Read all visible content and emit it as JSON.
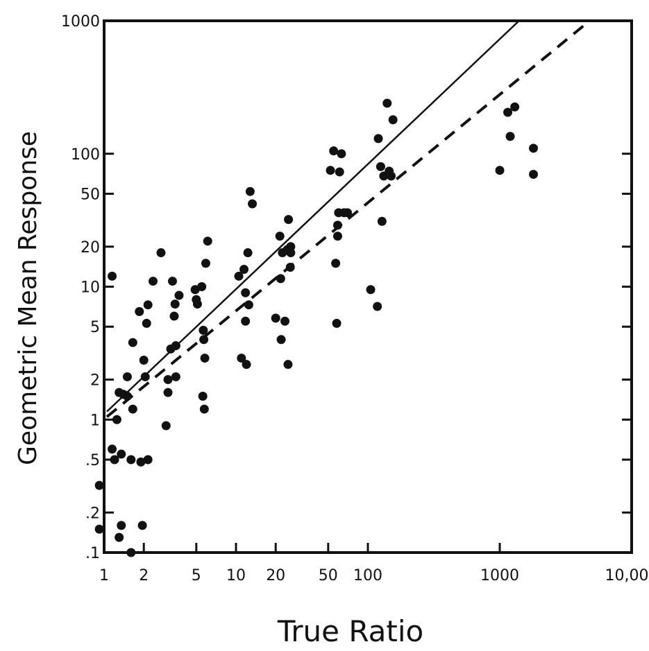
{
  "chart_data": {
    "type": "scatter",
    "xlabel": "True Ratio",
    "ylabel": "Geometric Mean Response",
    "x_scale": "log",
    "y_scale": "log",
    "xlim": [
      1,
      10000
    ],
    "ylim": [
      0.1,
      1000
    ],
    "x_ticklabels": [
      {
        "value": 1,
        "label": "1"
      },
      {
        "value": 2,
        "label": "2"
      },
      {
        "value": 5,
        "label": "5"
      },
      {
        "value": 10,
        "label": "10"
      },
      {
        "value": 20,
        "label": "20"
      },
      {
        "value": 50,
        "label": "50"
      },
      {
        "value": 100,
        "label": "100"
      },
      {
        "value": 1000,
        "label": "1000"
      },
      {
        "value": 10000,
        "label": "10,000"
      }
    ],
    "y_ticklabels": [
      {
        "value": 0.1,
        "label": ".1"
      },
      {
        "value": 0.2,
        "label": ".2"
      },
      {
        "value": 0.5,
        "label": ".5"
      },
      {
        "value": 1,
        "label": "1"
      },
      {
        "value": 2,
        "label": "2"
      },
      {
        "value": 5,
        "label": "5"
      },
      {
        "value": 10,
        "label": "10"
      },
      {
        "value": 20,
        "label": "20"
      },
      {
        "value": 50,
        "label": "50"
      },
      {
        "value": 100,
        "label": "100"
      },
      {
        "value": 1000,
        "label": "1000"
      }
    ],
    "grid": false,
    "series": [
      {
        "style": "points",
        "points": [
          [
            1.15,
            12
          ],
          [
            1.15,
            0.6
          ],
          [
            1.2,
            0.5
          ],
          [
            1.25,
            1
          ],
          [
            1.3,
            1.6
          ],
          [
            1.35,
            0.55
          ],
          [
            1.4,
            1.55
          ],
          [
            1.5,
            2.1
          ],
          [
            1.5,
            1.5
          ],
          [
            1.6,
            0.5
          ],
          [
            1.65,
            1.2
          ],
          [
            1.65,
            3.8
          ],
          [
            1.85,
            6.5
          ],
          [
            1.9,
            0.48
          ],
          [
            2,
            2.8
          ],
          [
            2.05,
            2.1
          ],
          [
            2.1,
            5.3
          ],
          [
            2.15,
            7.3
          ],
          [
            2.15,
            0.5
          ],
          [
            2.35,
            11
          ],
          [
            2.7,
            18
          ],
          [
            2.95,
            0.9
          ],
          [
            3.05,
            1.6
          ],
          [
            3.05,
            2
          ],
          [
            3.2,
            3.4
          ],
          [
            3.3,
            11
          ],
          [
            3.4,
            6
          ],
          [
            3.45,
            7.4
          ],
          [
            3.5,
            3.6
          ],
          [
            3.5,
            2.1
          ],
          [
            3.7,
            8.6
          ],
          [
            4.9,
            9.5
          ],
          [
            5,
            8
          ],
          [
            5.1,
            7.4
          ],
          [
            5.5,
            10
          ],
          [
            5.6,
            1.5
          ],
          [
            5.65,
            4.7
          ],
          [
            5.7,
            4
          ],
          [
            5.75,
            1.2
          ],
          [
            5.8,
            2.9
          ],
          [
            5.9,
            15
          ],
          [
            6.1,
            22
          ],
          [
            10.5,
            12
          ],
          [
            11,
            2.9
          ],
          [
            11.5,
            13.5
          ],
          [
            11.8,
            5.5
          ],
          [
            11.8,
            9
          ],
          [
            12,
            2.6
          ],
          [
            12.3,
            18
          ],
          [
            12.5,
            7.3
          ],
          [
            12.8,
            52
          ],
          [
            13.3,
            42
          ],
          [
            20,
            5.8
          ],
          [
            21.5,
            24
          ],
          [
            21.8,
            11.5
          ],
          [
            22,
            4
          ],
          [
            22.5,
            18
          ],
          [
            23.5,
            5.5
          ],
          [
            24.5,
            19
          ],
          [
            24.8,
            2.6
          ],
          [
            25,
            32
          ],
          [
            25.8,
            14
          ],
          [
            26,
            18
          ],
          [
            26,
            20
          ],
          [
            52,
            75
          ],
          [
            55,
            105
          ],
          [
            57,
            15
          ],
          [
            58,
            5.3
          ],
          [
            59,
            24
          ],
          [
            59,
            29
          ],
          [
            60,
            36
          ],
          [
            61,
            73
          ],
          [
            63,
            100
          ],
          [
            66,
            36
          ],
          [
            70,
            36
          ],
          [
            105,
            9.5
          ],
          [
            118,
            7.1
          ],
          [
            120,
            130
          ],
          [
            125,
            80
          ],
          [
            128,
            31
          ],
          [
            132,
            68
          ],
          [
            140,
            240
          ],
          [
            145,
            74
          ],
          [
            150,
            68
          ],
          [
            155,
            180
          ],
          [
            1000,
            75
          ],
          [
            1150,
            205
          ],
          [
            1200,
            135
          ],
          [
            1300,
            225
          ],
          [
            1800,
            110
          ],
          [
            1800,
            70
          ],
          [
            0.92,
            0.32
          ],
          [
            0.92,
            0.15
          ],
          [
            1.3,
            0.13
          ],
          [
            1.35,
            0.16
          ],
          [
            1.6,
            0.1
          ],
          [
            1.95,
            0.16
          ]
        ]
      },
      {
        "style": "solid-line",
        "points": [
          [
            1.05,
            1.15
          ],
          [
            1400,
            1000
          ]
        ]
      },
      {
        "style": "dashed-line",
        "points": [
          [
            1.05,
            1.05
          ],
          [
            4800,
            1000
          ]
        ]
      }
    ]
  }
}
